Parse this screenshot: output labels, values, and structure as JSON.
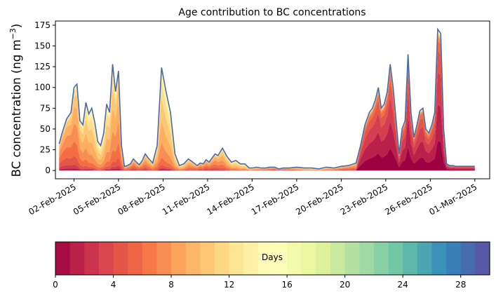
{
  "chart_data": [
    {
      "type": "area",
      "title": "Age contribution to BC concentrations",
      "ylabel_main": "BC concentration (ng m",
      "ylabel_sup": "−3",
      "ylabel_close": ")",
      "xlabel": "",
      "ylim": [
        -10,
        180
      ],
      "yticks": [
        0,
        25,
        50,
        75,
        100,
        125,
        150,
        175
      ],
      "xticks": [
        {
          "day": 2,
          "label": "02-Feb-2025"
        },
        {
          "day": 5,
          "label": "05-Feb-2025"
        },
        {
          "day": 8,
          "label": "08-Feb-2025"
        },
        {
          "day": 11,
          "label": "11-Feb-2025"
        },
        {
          "day": 14,
          "label": "14-Feb-2025"
        },
        {
          "day": 17,
          "label": "17-Feb-2025"
        },
        {
          "day": 20,
          "label": "20-Feb-2025"
        },
        {
          "day": 23,
          "label": "23-Feb-2025"
        },
        {
          "day": 26,
          "label": "26-Feb-2025"
        },
        {
          "day": 29,
          "label": "01-Mar-2025"
        }
      ],
      "xlim": [
        0.75,
        30
      ],
      "x_day": [
        1.0,
        1.2,
        1.5,
        1.8,
        2.0,
        2.2,
        2.4,
        2.6,
        2.8,
        3.0,
        3.2,
        3.4,
        3.6,
        3.8,
        4.0,
        4.2,
        4.4,
        4.6,
        4.8,
        5.0,
        5.2,
        5.4,
        5.6,
        5.8,
        6.0,
        6.2,
        6.4,
        6.6,
        6.8,
        7.0,
        7.3,
        7.6,
        7.9,
        8.2,
        8.5,
        8.8,
        9.1,
        9.4,
        9.7,
        10.0,
        10.3,
        10.5,
        10.7,
        10.9,
        11.1,
        11.3,
        11.5,
        11.7,
        12.0,
        12.3,
        12.6,
        12.9,
        13.2,
        13.5,
        13.8,
        14.0,
        14.3,
        14.6,
        14.9,
        15.2,
        15.5,
        15.8,
        16.1,
        16.5,
        17.0,
        17.5,
        18.0,
        18.5,
        19.0,
        19.5,
        20.0,
        20.5,
        21.0,
        21.3,
        21.6,
        21.9,
        22.1,
        22.3,
        22.5,
        22.7,
        22.9,
        23.1,
        23.3,
        23.5,
        23.7,
        23.9,
        24.1,
        24.3,
        24.5,
        24.7,
        24.9,
        25.1,
        25.3,
        25.5,
        25.7,
        25.9,
        26.1,
        26.3,
        26.5,
        26.7,
        26.9,
        27.1,
        27.3,
        27.5,
        27.7,
        27.9,
        28.1,
        28.4,
        28.7,
        29.0
      ],
      "total": [
        32,
        45,
        62,
        70,
        100,
        104,
        60,
        55,
        82,
        68,
        75,
        58,
        35,
        30,
        45,
        80,
        70,
        128,
        95,
        120,
        30,
        5,
        6,
        8,
        14,
        10,
        7,
        12,
        20,
        15,
        9,
        30,
        124,
        95,
        70,
        20,
        6,
        8,
        14,
        10,
        6,
        9,
        8,
        13,
        10,
        15,
        20,
        18,
        27,
        17,
        10,
        12,
        8,
        8,
        3,
        3,
        4,
        3,
        3,
        4,
        4,
        2,
        3,
        3,
        4,
        3,
        3,
        2,
        4,
        3,
        5,
        6,
        9,
        30,
        55,
        70,
        75,
        85,
        100,
        75,
        80,
        95,
        128,
        100,
        60,
        20,
        50,
        60,
        140,
        70,
        40,
        55,
        72,
        75,
        50,
        45,
        55,
        70,
        170,
        165,
        50,
        8,
        6,
        6,
        5,
        5,
        5,
        5,
        5,
        5
      ],
      "days_colorbar": {
        "label": "Days",
        "min": 0,
        "max": 30,
        "ticks": [
          0,
          4,
          8,
          12,
          16,
          20,
          24,
          28
        ],
        "n_bins": 30
      },
      "age_bands": [
        {
          "from_day": 0,
          "to_day": 4,
          "color": "#a50d45"
        },
        {
          "from_day": 4,
          "to_day": 8,
          "color": "#e0524a"
        },
        {
          "from_day": 8,
          "to_day": 12,
          "color": "#fba35e"
        },
        {
          "from_day": 12,
          "to_day": 16,
          "color": "#fee391"
        },
        {
          "from_day": 16,
          "to_day": 20,
          "color": "#fcfcb6"
        }
      ],
      "envelope_color": "#4a6aa8",
      "axis_edge_color": "#000000"
    }
  ]
}
